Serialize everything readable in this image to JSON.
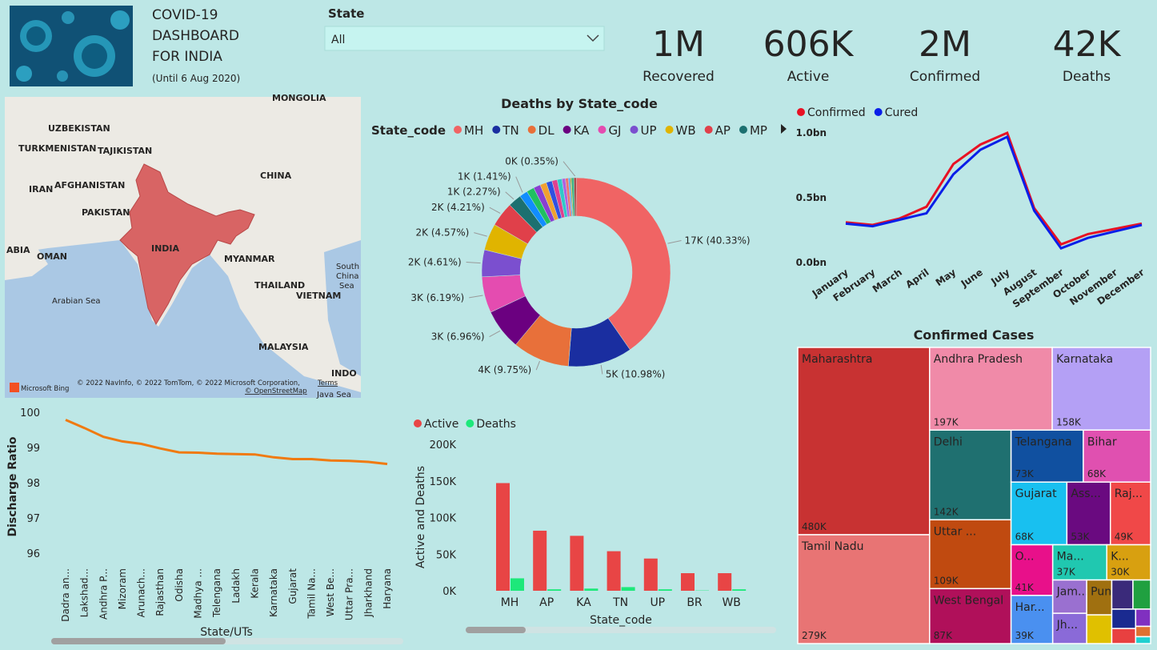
{
  "header": {
    "title_lines": [
      "COVID-19",
      "DASHBOARD",
      "FOR INDIA"
    ],
    "subtitle": "(Until 6 Aug 2020)"
  },
  "filter": {
    "label": "State",
    "value": "All"
  },
  "kpis": [
    {
      "value": "1M",
      "label": "Recovered"
    },
    {
      "value": "606K",
      "label": "Active"
    },
    {
      "value": "2M",
      "label": "Confirmed"
    },
    {
      "value": "42K",
      "label": "Deaths"
    }
  ],
  "map": {
    "labels": [
      "MONGOLIA",
      "UZBEKISTAN",
      "TURKMENISTAN",
      "TAJIKISTAN",
      "IRAN",
      "AFGHANISTAN",
      "PAKISTAN",
      "CHINA",
      "INDIA",
      "ABIA",
      "OMAN",
      "MYANMAR",
      "South",
      "China",
      "Sea",
      "THAILAND",
      "VIETNAM",
      "Arabian Sea",
      "MALAYSIA",
      "INDO",
      "Java Sea"
    ],
    "credits": "© 2022 NavInfo, © 2022 TomTom, © 2022 Microsoft Corporation,",
    "terms": "Terms",
    "osm": "© OpenStreetMap",
    "brand": "Microsoft Bing"
  },
  "chart_data": [
    {
      "type": "donut",
      "title": "Deaths by State_code",
      "legend_title": "State_code",
      "categories": [
        "MH",
        "TN",
        "DL",
        "KA",
        "GJ",
        "UP",
        "WB",
        "AP",
        "MP",
        null,
        null,
        null,
        null,
        null,
        null,
        null,
        null,
        null,
        null,
        null,
        null,
        null
      ],
      "values": [
        40.33,
        10.98,
        9.75,
        6.96,
        6.19,
        4.61,
        4.57,
        4.21,
        2.27,
        1.41,
        1.3,
        1.2,
        1.1,
        1.0,
        0.9,
        0.8,
        0.6,
        0.5,
        0.32,
        0.2,
        0.45,
        0.35
      ],
      "value_labels": [
        "17K (40.33%)",
        "5K (10.98%)",
        "4K (9.75%)",
        "3K (6.96%)",
        "3K (6.19%)",
        "2K (4.61%)",
        "2K (4.57%)",
        "2K (4.21%)",
        "1K (2.27%)",
        "1K (1.41%)",
        null,
        null,
        null,
        null,
        null,
        null,
        null,
        null,
        null,
        null,
        null,
        "0K (0.35%)"
      ],
      "colors": [
        "#f06464",
        "#1a2ea0",
        "#e8703a",
        "#6b0080",
        "#e44cb0",
        "#7b4fcf",
        "#e0b400",
        "#e0404a",
        "#1c7070",
        "#118dff",
        "#20c060",
        "#8a3fd0",
        "#f0a030",
        "#3050e0",
        "#e04090",
        "#30c8c8",
        "#b060e0",
        "#f07070",
        "#60a0f0",
        "#c0a000",
        "#40b080",
        "#a03030"
      ]
    },
    {
      "type": "line",
      "categories": [
        "January",
        "February",
        "March",
        "April",
        "May",
        "June",
        "July",
        "August",
        "September",
        "October",
        "November",
        "December"
      ],
      "series": [
        {
          "name": "Confirmed",
          "color": "#e81123",
          "values": [
            0.31,
            0.29,
            0.34,
            0.43,
            0.76,
            0.91,
            1.0,
            0.42,
            0.14,
            0.22,
            0.26,
            0.3
          ]
        },
        {
          "name": "Cured",
          "color": "#0a1ee8",
          "values": [
            0.3,
            0.28,
            0.33,
            0.38,
            0.68,
            0.87,
            0.97,
            0.4,
            0.11,
            0.19,
            0.24,
            0.29
          ]
        }
      ],
      "ylim": [
        0,
        1.05
      ],
      "yticks": [
        {
          "value": 0,
          "label": "0.0bn"
        },
        {
          "value": 0.5,
          "label": "0.5bn"
        },
        {
          "value": 1,
          "label": "1.0bn"
        }
      ]
    },
    {
      "type": "treemap",
      "title": "Confirmed Cases",
      "categories": [
        "Maharashtra",
        "Tamil Nadu",
        "Andhra Pradesh",
        "Karnataka",
        "Delhi",
        "Uttar ...",
        "West Bengal",
        "Telangana",
        "Bihar",
        "Gujarat",
        "Ass...",
        "Raj...",
        "O...",
        "Har...",
        "Ma...",
        "K...",
        "Jam...",
        "Jh...",
        "Pun...",
        null,
        null,
        null,
        null,
        null,
        null,
        null,
        null
      ],
      "values": [
        480000,
        279000,
        197000,
        158000,
        142000,
        109000,
        87000,
        73000,
        68000,
        68000,
        53000,
        49000,
        41000,
        39000,
        37000,
        30000,
        22000,
        20000,
        17000,
        14000,
        12000,
        10000,
        9000,
        7000,
        5000,
        3000,
        2000
      ],
      "value_labels": [
        "480K",
        "279K",
        "197K",
        "158K",
        "142K",
        "109K",
        "87K",
        "73K",
        "68K",
        "68K",
        "53K",
        "49K",
        "41K",
        "39K",
        "37K",
        "30K",
        null,
        null,
        null,
        null,
        null,
        null,
        null,
        null,
        null,
        null,
        null
      ],
      "colors": [
        "#c83232",
        "#e87474",
        "#f08aa8",
        "#b4a0f5",
        "#1f7070",
        "#c04a10",
        "#b0105a",
        "#1050a0",
        "#e050b0",
        "#18c0f0",
        "#6a0a80",
        "#f04848",
        "#e8108a",
        "#4a90f0",
        "#20c8b0",
        "#d8a010",
        "#9a70d0",
        "#8a6ad8",
        "#a07010",
        "#e0c000",
        "#3a2a7a",
        "#20a040",
        "#1a2a90",
        "#e84040",
        "#8030c0",
        "#e07030",
        "#20d0d0"
      ]
    },
    {
      "type": "line",
      "categories": [
        "Dadra an...",
        "Lakshad...",
        "Andhra P...",
        "Mizoram",
        "Arunach...",
        "Rajasthan",
        "Odisha",
        "Madhya ...",
        "Telengana",
        "Ladakh",
        "Kerala",
        "Karnataka",
        "Gujarat",
        "Tamil Na...",
        "West Be...",
        "Uttar Pra...",
        "Jharkhand",
        "Haryana"
      ],
      "series": [
        {
          "name": null,
          "color": "#f07a10",
          "values": [
            99.78,
            99.55,
            99.3,
            99.17,
            99.1,
            98.97,
            98.86,
            98.85,
            98.82,
            98.81,
            98.8,
            98.72,
            98.67,
            98.67,
            98.63,
            98.62,
            98.59,
            98.53
          ]
        }
      ],
      "x_label": "State/UTs",
      "y_label": "Discharge Ratio",
      "ylim": [
        95.8,
        100.2
      ],
      "yticks": [
        96,
        97,
        98,
        99,
        100
      ]
    },
    {
      "type": "bar",
      "categories": [
        "MH",
        "AP",
        "KA",
        "TN",
        "UP",
        "BR",
        "WB"
      ],
      "series": [
        {
          "name": "Active",
          "color": "#e84545",
          "values": [
            147000,
            82000,
            75000,
            54000,
            44000,
            24000,
            24000
          ]
        },
        {
          "name": "Deaths",
          "color": "#1de87a",
          "values": [
            17000,
            2000,
            3000,
            5000,
            2000,
            400,
            2000
          ]
        }
      ],
      "x_label": "State_code",
      "y_label": "Active and Deaths",
      "ylim": [
        0,
        210000
      ],
      "yticks": [
        {
          "value": 0,
          "label": "0K"
        },
        {
          "value": 50000,
          "label": "50K"
        },
        {
          "value": 100000,
          "label": "100K"
        },
        {
          "value": 150000,
          "label": "150K"
        },
        {
          "value": 200000,
          "label": "200K"
        }
      ]
    }
  ]
}
